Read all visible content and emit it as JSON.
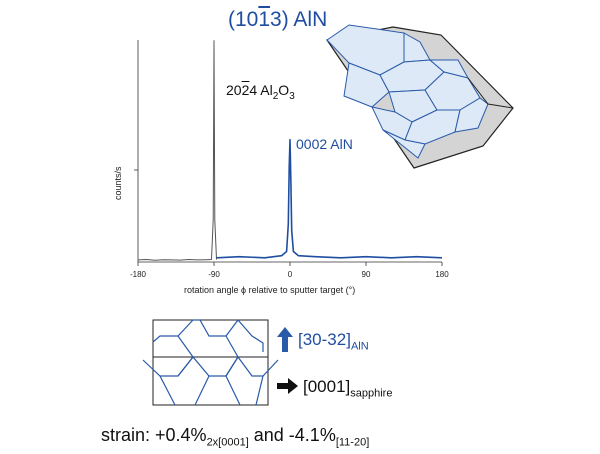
{
  "title": {
    "prefix": "(10",
    "bar_digit": "1",
    "suffix": "3) AlN"
  },
  "annotations": {
    "al2o3": {
      "prefix": "20",
      "bar_digit": "2",
      "mid": "4 Al",
      "sub1": "2",
      "o": "O",
      "sub2": "3"
    },
    "aln_peak": "0002 AlN"
  },
  "colors": {
    "aln": "#1f4ea1",
    "al2o3": "#555555",
    "arrow_blue": "#2a5aa8"
  },
  "chart_data": {
    "type": "line",
    "xlabel_pre": "rotation angle ",
    "xlabel_phi": "ϕ",
    "xlabel_post": " relative to sputter target  (°)",
    "ylabel": "counts/s",
    "xlim": [
      -180,
      180
    ],
    "xticks": [
      -180,
      -90,
      0,
      90,
      180
    ],
    "xtick_labels": [
      "-180",
      "-90",
      "0",
      "90",
      "180"
    ],
    "series": [
      {
        "color": "#555555",
        "x": [
          -180,
          -170,
          -160,
          -150,
          -140,
          -130,
          -120,
          -110,
          -100,
          -93,
          -91,
          -90,
          -89,
          -87
        ],
        "y": [
          0.01,
          0.012,
          0.008,
          0.011,
          0.01,
          0.009,
          0.012,
          0.01,
          0.011,
          0.012,
          0.2,
          1.05,
          0.2,
          0.012
        ]
      },
      {
        "color": "#1f4ea1",
        "x": [
          -87,
          -60,
          -30,
          -10,
          -4,
          -2,
          -1,
          0,
          1,
          2,
          4,
          10,
          30,
          60,
          90,
          120,
          150,
          180
        ],
        "y": [
          0.02,
          0.025,
          0.02,
          0.03,
          0.05,
          0.18,
          0.45,
          0.58,
          0.4,
          0.15,
          0.05,
          0.03,
          0.025,
          0.02,
          0.025,
          0.02,
          0.025,
          0.02
        ]
      }
    ]
  },
  "directions": {
    "aln": {
      "main": "[30-32]",
      "sub": "AlN"
    },
    "sapphire": {
      "main": "[0001]",
      "sub": "sapphire"
    }
  },
  "strain": {
    "pre": "strain: +0.4%",
    "sub1": "2x[0001]",
    "mid": " and -4.1%",
    "sub2": "[11-20]"
  }
}
